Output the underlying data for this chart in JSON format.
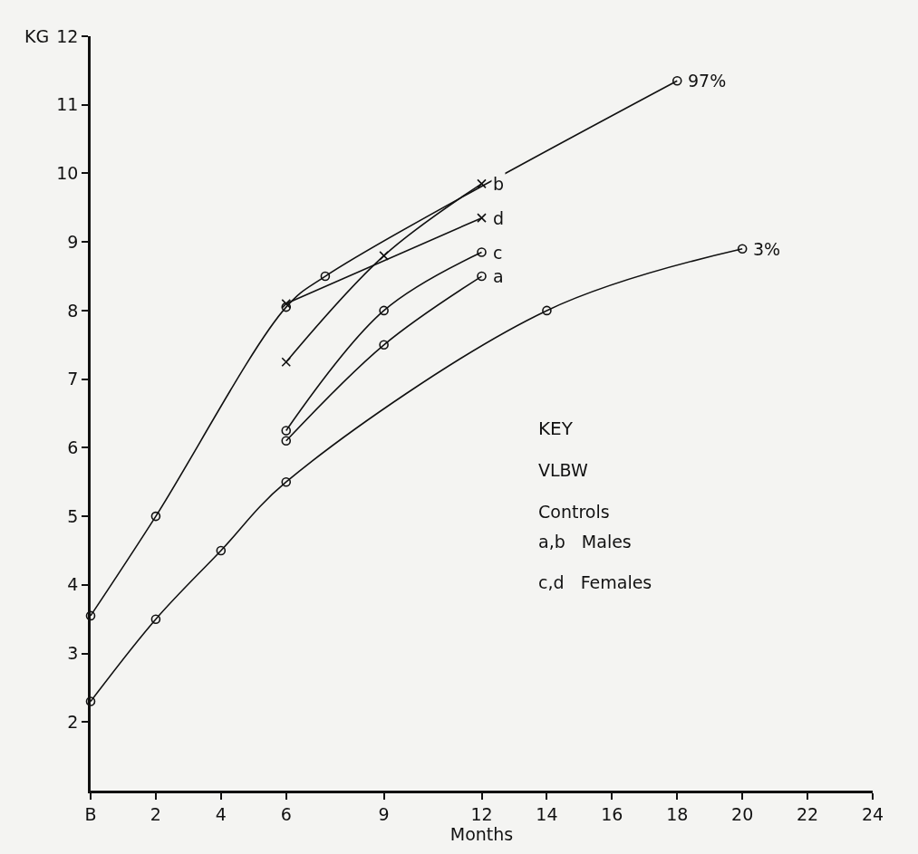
{
  "chart_data": {
    "type": "line",
    "xlabel": "Months",
    "ylabel": "KG",
    "legend_title": "KEY",
    "xlim": [
      0,
      24
    ],
    "ylim": [
      1,
      12
    ],
    "xticks": [
      {
        "value": 0,
        "label": "B"
      },
      2,
      4,
      6,
      9,
      12,
      14,
      16,
      18,
      20,
      22,
      24
    ],
    "yticks": [
      2,
      3,
      4,
      5,
      6,
      7,
      8,
      9,
      10,
      11,
      12
    ],
    "grid": false,
    "legend": false,
    "line_style": "solid",
    "series": [
      {
        "name": "97%",
        "color": "#111111",
        "marker": "circle",
        "x": [
          0,
          2,
          6,
          7.2,
          18
        ],
        "values": [
          3.55,
          5.0,
          8.05,
          8.5,
          11.35
        ]
      },
      {
        "name": "3%",
        "color": "#111111",
        "marker": "circle",
        "x": [
          0,
          2,
          4,
          6,
          14,
          20
        ],
        "values": [
          2.3,
          3.5,
          4.5,
          5.5,
          8.0,
          8.9
        ]
      },
      {
        "name": "b",
        "color": "#111111",
        "marker": "cross",
        "x": [
          6,
          9,
          12
        ],
        "values": [
          7.25,
          8.8,
          9.85
        ]
      },
      {
        "name": "d",
        "color": "#111111",
        "marker": "cross",
        "x": [
          6,
          12
        ],
        "values": [
          8.1,
          9.35
        ]
      },
      {
        "name": "c",
        "color": "#111111",
        "marker": "circle",
        "x": [
          6,
          9,
          12
        ],
        "values": [
          6.25,
          8.0,
          8.85
        ]
      },
      {
        "name": "a",
        "color": "#111111",
        "marker": "circle",
        "x": [
          6,
          9,
          12
        ],
        "values": [
          6.1,
          7.5,
          8.5
        ]
      }
    ],
    "annotations": [
      "VLBW",
      "Controls",
      "a,b   Males",
      "c,d   Females"
    ]
  }
}
